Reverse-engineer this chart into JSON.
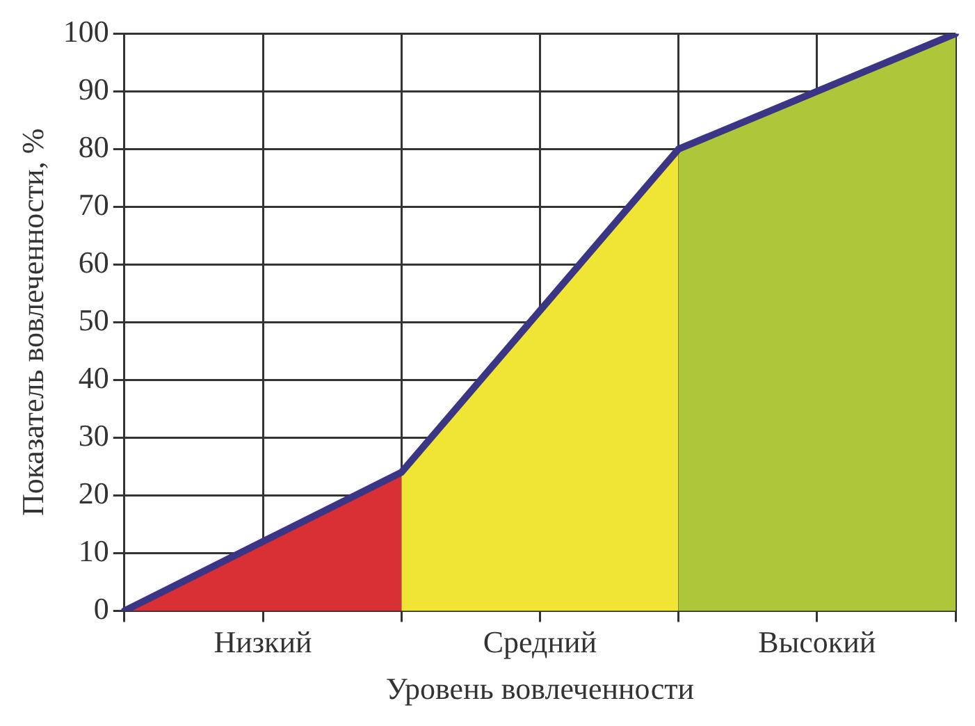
{
  "chart_data": {
    "type": "area",
    "xlabel": "Уровень вовлеченности",
    "ylabel": "Показатель вовлеченности, %",
    "categories": [
      null,
      "Низкий",
      null,
      "Средний",
      null,
      "Высокий",
      null
    ],
    "ylim": [
      0,
      100
    ],
    "yticks": [
      0,
      10,
      20,
      30,
      40,
      50,
      60,
      70,
      80,
      90,
      100
    ],
    "grid": true,
    "series": [
      {
        "color": "#d93035",
        "values": [
          0,
          12,
          24,
          null,
          null,
          null,
          null
        ]
      },
      {
        "color": "#f0e535",
        "values": [
          null,
          null,
          24,
          52,
          80,
          null,
          null
        ]
      },
      {
        "color": "#aec73a",
        "values": [
          null,
          null,
          null,
          null,
          80,
          90,
          100
        ]
      },
      {
        "type": "line",
        "color": "#3a3585",
        "values": [
          0,
          12,
          24,
          52,
          80,
          90,
          100
        ]
      }
    ]
  }
}
